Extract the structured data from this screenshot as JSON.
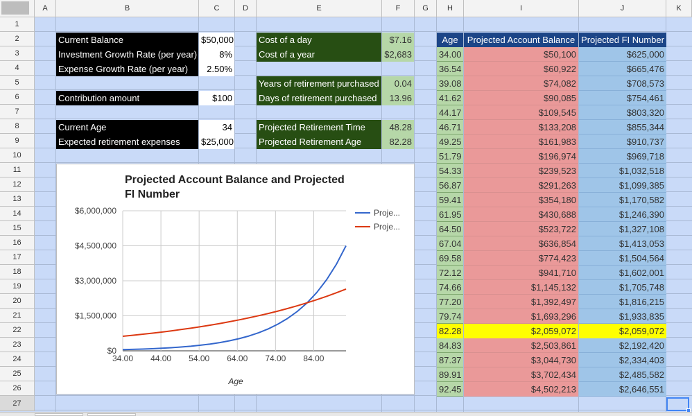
{
  "columns": [
    "A",
    "B",
    "C",
    "D",
    "E",
    "F",
    "G",
    "H",
    "I",
    "J",
    "K"
  ],
  "rows": [
    "1",
    "2",
    "3",
    "4",
    "5",
    "6",
    "7",
    "8",
    "9",
    "10",
    "11",
    "12",
    "13",
    "14",
    "15",
    "16",
    "17",
    "18",
    "19",
    "20",
    "21",
    "22",
    "23",
    "24",
    "25",
    "26",
    "27"
  ],
  "inputs": {
    "current_balance_label": "Current Balance",
    "current_balance": "$50,000",
    "growth_rate_label": "Investment Growth Rate (per year)",
    "growth_rate": "8%",
    "expense_growth_label": "Expense Growth Rate (per year)",
    "expense_growth": "2.50%",
    "contribution_label": "Contribution amount",
    "contribution": "$100",
    "current_age_label": "Current Age",
    "current_age": "34",
    "retirement_expenses_label": "Expected retirement expenses",
    "retirement_expenses": "$25,000"
  },
  "calc": {
    "cost_day_label": "Cost of a day",
    "cost_day": "$7.16",
    "cost_year_label": "Cost of a year",
    "cost_year": "$2,683",
    "years_purchased_label": "Years of retirement purchased",
    "years_purchased": "0.04",
    "days_purchased_label": "Days of retirement purchased",
    "days_purchased": "13.96",
    "proj_time_label": "Projected Retirement Time",
    "proj_time": "48.28",
    "proj_age_label": "Projected Retirement Age",
    "proj_age": "82.28"
  },
  "table": {
    "headers": [
      "Age",
      "Projected Account Balance",
      "Projected FI Number"
    ],
    "rows": [
      [
        "34.00",
        "$50,100",
        "$625,000"
      ],
      [
        "36.54",
        "$60,922",
        "$665,476"
      ],
      [
        "39.08",
        "$74,082",
        "$708,573"
      ],
      [
        "41.62",
        "$90,085",
        "$754,461"
      ],
      [
        "44.17",
        "$109,545",
        "$803,320"
      ],
      [
        "46.71",
        "$133,208",
        "$855,344"
      ],
      [
        "49.25",
        "$161,983",
        "$910,737"
      ],
      [
        "51.79",
        "$196,974",
        "$969,718"
      ],
      [
        "54.33",
        "$239,523",
        "$1,032,518"
      ],
      [
        "56.87",
        "$291,263",
        "$1,099,385"
      ],
      [
        "59.41",
        "$354,180",
        "$1,170,582"
      ],
      [
        "61.95",
        "$430,688",
        "$1,246,390"
      ],
      [
        "64.50",
        "$523,722",
        "$1,327,108"
      ],
      [
        "67.04",
        "$636,854",
        "$1,413,053"
      ],
      [
        "69.58",
        "$774,423",
        "$1,504,564"
      ],
      [
        "72.12",
        "$941,710",
        "$1,602,001"
      ],
      [
        "74.66",
        "$1,145,132",
        "$1,705,748"
      ],
      [
        "77.20",
        "$1,392,497",
        "$1,816,215"
      ],
      [
        "79.74",
        "$1,693,296",
        "$1,933,835"
      ],
      [
        "82.28",
        "$2,059,072",
        "$2,059,072"
      ],
      [
        "84.83",
        "$2,503,861",
        "$2,192,420"
      ],
      [
        "87.37",
        "$3,044,730",
        "$2,334,403"
      ],
      [
        "89.91",
        "$3,702,434",
        "$2,485,582"
      ],
      [
        "92.45",
        "$4,502,213",
        "$2,646,551"
      ]
    ],
    "highlight_index": 19
  },
  "colors": {
    "black": "#000000",
    "dark_green": "#274e13",
    "light_green": "#b6d7a8",
    "navy": "#1c4587",
    "salmon": "#ea9999",
    "light_blue": "#9fc5e8",
    "yellow": "#ffff00",
    "sheet_bg": "#c9daf8"
  },
  "chart_data": {
    "type": "line",
    "title": "Projected Account Balance and Projected FI Number",
    "xlabel": "Age",
    "ylabel": "",
    "x": [
      34.0,
      36.54,
      39.08,
      41.62,
      44.17,
      46.71,
      49.25,
      51.79,
      54.33,
      56.87,
      59.41,
      61.95,
      64.5,
      67.04,
      69.58,
      72.12,
      74.66,
      77.2,
      79.74,
      82.28,
      84.83,
      87.37,
      89.91,
      92.45
    ],
    "xlim": [
      34,
      92.45
    ],
    "x_ticks": [
      34,
      44,
      54,
      64,
      74,
      84
    ],
    "x_tick_labels": [
      "34.00",
      "44.00",
      "54.00",
      "64.00",
      "74.00",
      "84.00"
    ],
    "ylim": [
      0,
      6000000
    ],
    "y_ticks": [
      0,
      1500000,
      3000000,
      4500000,
      6000000
    ],
    "y_tick_labels": [
      "$0",
      "$1,500,000",
      "$3,000,000",
      "$4,500,000",
      "$6,000,000"
    ],
    "grid": true,
    "legend": "right",
    "series": [
      {
        "name": "Proje...",
        "color": "#3366cc",
        "values": [
          50100,
          60922,
          74082,
          90085,
          109545,
          133208,
          161983,
          196974,
          239523,
          291263,
          354180,
          430688,
          523722,
          636854,
          774423,
          941710,
          1145132,
          1392497,
          1693296,
          2059072,
          2503861,
          3044730,
          3702434,
          4502213
        ]
      },
      {
        "name": "Proje...",
        "color": "#dc3912",
        "values": [
          625000,
          665476,
          708573,
          754461,
          803320,
          855344,
          910737,
          969718,
          1032518,
          1099385,
          1170582,
          1246390,
          1327108,
          1413053,
          1504564,
          1602001,
          1705748,
          1816215,
          1933835,
          2059072,
          2192420,
          2334403,
          2485582,
          2646551
        ]
      }
    ]
  }
}
